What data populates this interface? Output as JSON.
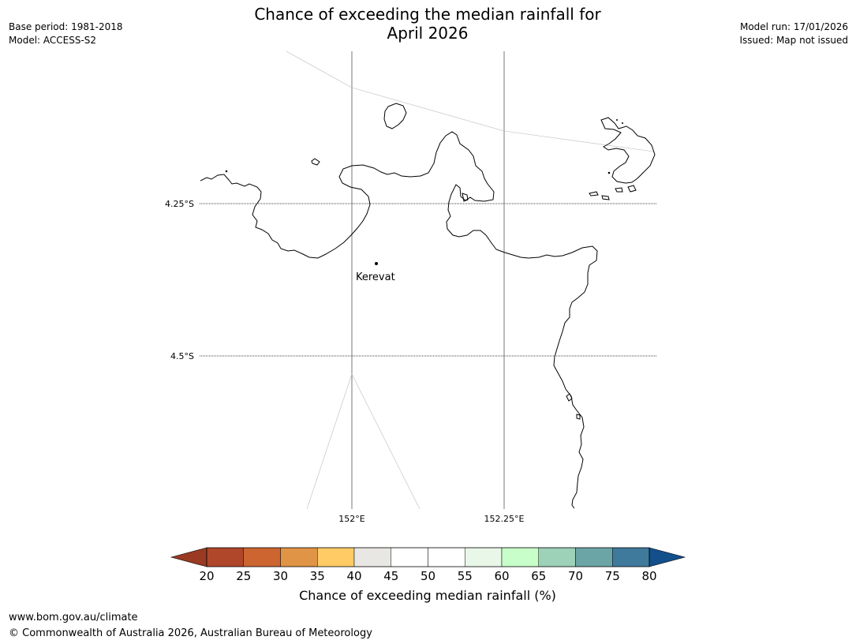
{
  "header": {
    "title_line1": "Chance of exceeding the median rainfall for",
    "title_line2": "April 2026",
    "base_period": "Base period: 1981-2018",
    "model": "Model: ACCESS-S2",
    "model_run": "Model run: 17/01/2026",
    "issued": "Issued: Map not issued"
  },
  "map": {
    "lat_labels": [
      "4.25°S",
      "4.5°S"
    ],
    "lon_labels": [
      "152°E",
      "152.25°E"
    ],
    "place": {
      "name": "Kerevat"
    }
  },
  "colorbar": {
    "label": "Chance of exceeding median rainfall (%)",
    "ticks": [
      "20",
      "25",
      "30",
      "35",
      "40",
      "45",
      "50",
      "55",
      "60",
      "65",
      "70",
      "75",
      "80"
    ],
    "under_color": "#9a3a22",
    "over_color": "#134f8a",
    "colors": [
      "#b0472a",
      "#cc6530",
      "#e09445",
      "#fecb65",
      "#e8e7e4",
      "#ffffff",
      "#ffffff",
      "#e9f7e8",
      "#c8fec9",
      "#9dd2b9",
      "#6ca5a5",
      "#3f7a9c"
    ]
  },
  "footer": {
    "url": "www.bom.gov.au/climate",
    "copyright": "© Commonwealth of Australia 2026, Australian Bureau of Meteorology"
  }
}
